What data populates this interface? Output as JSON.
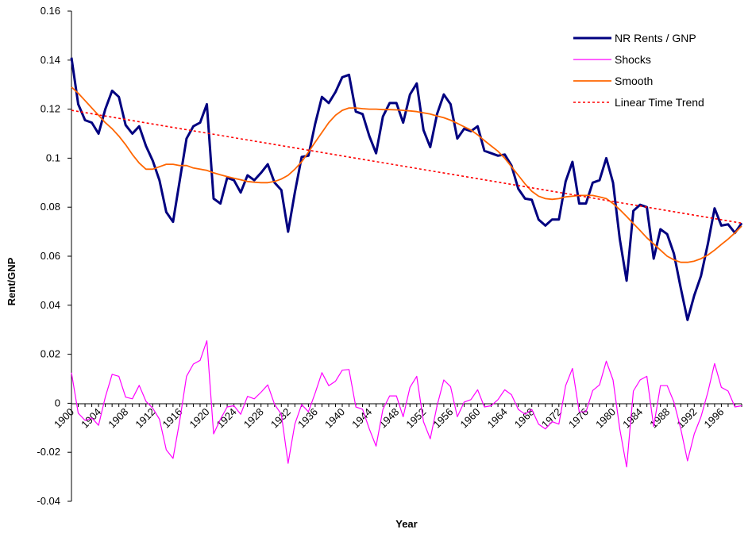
{
  "chart_data": {
    "type": "line",
    "xlabel": "Year",
    "ylabel": "Rent/GNP",
    "ylim": [
      -0.04,
      0.16
    ],
    "y_ticks": [
      -0.04,
      -0.02,
      0,
      0.02,
      0.04,
      0.06,
      0.08,
      0.1,
      0.12,
      0.14,
      0.16
    ],
    "y_tick_labels": [
      "-0.04",
      "-0.02",
      "0",
      "0.02",
      "0.04",
      "0.06",
      "0.08",
      "0.1",
      "0.12",
      "0.14",
      "0.16"
    ],
    "x_range": [
      1900,
      1999
    ],
    "x_tick_labels": [
      "1900",
      "1904",
      "1908",
      "1912",
      "1916",
      "1920",
      "1924",
      "1928",
      "1932",
      "1936",
      "1940",
      "1944",
      "1948",
      "1952",
      "1956",
      "1960",
      "1964",
      "1968",
      "1972",
      "1976",
      "1980",
      "1984",
      "1988",
      "1992",
      "1996"
    ],
    "legend_position": "top-right",
    "grid": false,
    "years": [
      1900,
      1901,
      1902,
      1903,
      1904,
      1905,
      1906,
      1907,
      1908,
      1909,
      1910,
      1911,
      1912,
      1913,
      1914,
      1915,
      1916,
      1917,
      1918,
      1919,
      1920,
      1921,
      1922,
      1923,
      1924,
      1925,
      1926,
      1927,
      1928,
      1929,
      1930,
      1931,
      1932,
      1933,
      1934,
      1935,
      1936,
      1937,
      1938,
      1939,
      1940,
      1941,
      1942,
      1943,
      1944,
      1945,
      1946,
      1947,
      1948,
      1949,
      1950,
      1951,
      1952,
      1953,
      1954,
      1955,
      1956,
      1957,
      1958,
      1959,
      1960,
      1961,
      1962,
      1963,
      1964,
      1965,
      1966,
      1967,
      1968,
      1969,
      1970,
      1971,
      1972,
      1973,
      1974,
      1975,
      1976,
      1977,
      1978,
      1979,
      1980,
      1981,
      1982,
      1983,
      1984,
      1985,
      1986,
      1987,
      1988,
      1989,
      1990,
      1991,
      1992,
      1993,
      1994,
      1995,
      1996,
      1997,
      1998,
      1999
    ],
    "series": [
      {
        "name": "NR Rents / GNP",
        "color": "#000080",
        "style": "solid-thick",
        "values": [
          0.141,
          0.122,
          0.1155,
          0.1145,
          0.11,
          0.12,
          0.1275,
          0.125,
          0.1135,
          0.11,
          0.113,
          0.105,
          0.099,
          0.091,
          0.078,
          0.074,
          0.091,
          0.108,
          0.113,
          0.1145,
          0.122,
          0.0835,
          0.0815,
          0.092,
          0.091,
          0.086,
          0.093,
          0.091,
          0.094,
          0.0975,
          0.09,
          0.087,
          0.07,
          0.086,
          0.1005,
          0.101,
          0.114,
          0.125,
          0.1225,
          0.127,
          0.133,
          0.134,
          0.119,
          0.118,
          0.109,
          0.102,
          0.117,
          0.1225,
          0.1225,
          0.1145,
          0.126,
          0.1305,
          0.1115,
          0.1045,
          0.118,
          0.126,
          0.122,
          0.108,
          0.112,
          0.111,
          0.113,
          0.103,
          0.102,
          0.101,
          0.1015,
          0.097,
          0.0875,
          0.0835,
          0.083,
          0.075,
          0.0725,
          0.075,
          0.075,
          0.0905,
          0.0985,
          0.0815,
          0.0815,
          0.09,
          0.091,
          0.1,
          0.09,
          0.067,
          0.05,
          0.0785,
          0.081,
          0.08,
          0.059,
          0.071,
          0.069,
          0.061,
          0.047,
          0.034,
          0.044,
          0.052,
          0.065,
          0.0795,
          0.0725,
          0.073,
          0.0695,
          0.0735
        ]
      },
      {
        "name": "Shocks",
        "color": "#ff00ff",
        "style": "solid-thin",
        "values": [
          0.0125,
          -0.004,
          -0.007,
          -0.006,
          -0.009,
          0.0025,
          0.0118,
          0.011,
          0.0025,
          0.0018,
          0.0073,
          0.0008,
          -0.002,
          -0.0065,
          -0.019,
          -0.0225,
          -0.007,
          0.011,
          0.016,
          0.0175,
          0.0255,
          -0.0125,
          -0.0065,
          -0.0015,
          -0.001,
          -0.0045,
          0.0028,
          0.0018,
          0.0045,
          0.0075,
          -0.0005,
          -0.0045,
          -0.0245,
          -0.0085,
          -0.0005,
          -0.0035,
          0.0042,
          0.0125,
          0.0072,
          0.009,
          0.0135,
          0.0138,
          -0.0015,
          -0.0025,
          -0.0105,
          -0.0175,
          -0.0025,
          0.003,
          0.003,
          -0.0055,
          0.0065,
          0.011,
          -0.0075,
          -0.0145,
          -0.001,
          0.0095,
          0.0068,
          -0.0055,
          0.0005,
          0.0015,
          0.0055,
          -0.0015,
          -0.001,
          0.0015,
          0.0055,
          0.0035,
          -0.0025,
          -0.0045,
          -0.0025,
          -0.0085,
          -0.0105,
          -0.0075,
          -0.0085,
          0.0072,
          0.0142,
          -0.0035,
          -0.0035,
          0.0052,
          0.0075,
          0.0172,
          0.0095,
          -0.0105,
          -0.026,
          0.005,
          0.0095,
          0.011,
          -0.0095,
          0.0072,
          0.0072,
          0.0005,
          -0.0105,
          -0.0235,
          -0.0125,
          -0.0055,
          0.0045,
          0.0162,
          0.0065,
          0.005,
          -0.0015,
          -0.001
        ]
      },
      {
        "name": "Smooth",
        "color": "#ff6600",
        "style": "solid-medium",
        "values": [
          0.129,
          0.1265,
          0.1235,
          0.1205,
          0.1175,
          0.1145,
          0.112,
          0.109,
          0.1055,
          0.1015,
          0.098,
          0.0955,
          0.0955,
          0.0965,
          0.0975,
          0.0975,
          0.097,
          0.097,
          0.096,
          0.0955,
          0.095,
          0.094,
          0.0932,
          0.0925,
          0.0918,
          0.0912,
          0.0905,
          0.0902,
          0.09,
          0.09,
          0.0905,
          0.0915,
          0.093,
          0.0955,
          0.0985,
          0.1025,
          0.1065,
          0.1105,
          0.1145,
          0.1175,
          0.1195,
          0.1205,
          0.1205,
          0.1202,
          0.12,
          0.12,
          0.1198,
          0.1198,
          0.1197,
          0.1195,
          0.1193,
          0.119,
          0.1185,
          0.118,
          0.1172,
          0.1165,
          0.1155,
          0.1142,
          0.1128,
          0.1115,
          0.1095,
          0.1072,
          0.105,
          0.1028,
          0.1,
          0.0965,
          0.093,
          0.0895,
          0.0865,
          0.0845,
          0.0835,
          0.0832,
          0.0835,
          0.0842,
          0.0845,
          0.0848,
          0.0848,
          0.0848,
          0.0842,
          0.0835,
          0.0815,
          0.079,
          0.0762,
          0.0733,
          0.0705,
          0.0675,
          0.065,
          0.0625,
          0.06,
          0.0585,
          0.0575,
          0.0575,
          0.058,
          0.059,
          0.0605,
          0.0625,
          0.0648,
          0.067,
          0.0695,
          0.0723
        ]
      },
      {
        "name": "Linear Time Trend",
        "color": "#ff0000",
        "style": "dotted",
        "values": [
          0.1195,
          0.0735
        ]
      }
    ]
  }
}
